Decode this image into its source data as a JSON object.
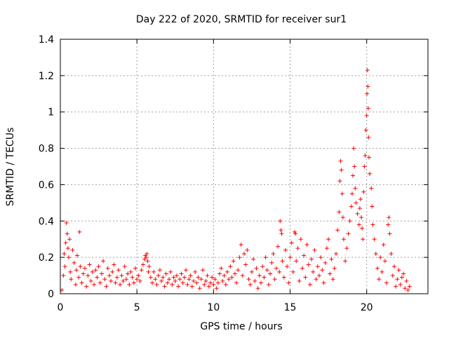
{
  "chart_data": {
    "type": "scatter",
    "title": "Day 222 of 2020, SRMTID for receiver sur1",
    "xlabel": "GPS time / hours",
    "ylabel": "SRMTID / TECUs",
    "xlim": [
      0,
      24
    ],
    "ylim": [
      0,
      1.4
    ],
    "xticks": [
      0,
      5,
      10,
      15,
      20
    ],
    "xtick_labels": [
      "0",
      "5",
      "10",
      "15",
      "20"
    ],
    "yticks": [
      0,
      0.2,
      0.4,
      0.6,
      0.8,
      1,
      1.2,
      1.4
    ],
    "ytick_labels": [
      "0",
      "0.2",
      "0.4",
      "0.6",
      "0.8",
      "1",
      "1.2",
      "1.4"
    ],
    "grid": true,
    "marker": "+",
    "colors": {
      "series": "#ff0000",
      "grid": "#a0a0a0",
      "axis": "#000000"
    },
    "series": [
      {
        "name": "SRMTID",
        "points": [
          [
            0.1,
            0.02
          ],
          [
            0.2,
            0.1
          ],
          [
            0.25,
            0.22
          ],
          [
            0.3,
            0.15
          ],
          [
            0.35,
            0.28
          ],
          [
            0.4,
            0.39
          ],
          [
            0.45,
            0.33
          ],
          [
            0.5,
            0.25
          ],
          [
            0.55,
            0.2
          ],
          [
            0.6,
            0.3
          ],
          [
            0.65,
            0.12
          ],
          [
            0.7,
            0.08
          ],
          [
            0.8,
            0.24
          ],
          [
            0.9,
            0.17
          ],
          [
            1.0,
            0.05
          ],
          [
            1.05,
            0.13
          ],
          [
            1.1,
            0.21
          ],
          [
            1.2,
            0.09
          ],
          [
            1.25,
            0.34
          ],
          [
            1.3,
            0.15
          ],
          [
            1.4,
            0.06
          ],
          [
            1.5,
            0.11
          ],
          [
            1.6,
            0.14
          ],
          [
            1.7,
            0.04
          ],
          [
            1.8,
            0.1
          ],
          [
            1.9,
            0.16
          ],
          [
            2.0,
            0.07
          ],
          [
            2.1,
            0.12
          ],
          [
            2.2,
            0.05
          ],
          [
            2.3,
            0.13
          ],
          [
            2.4,
            0.09
          ],
          [
            2.5,
            0.15
          ],
          [
            2.6,
            0.06
          ],
          [
            2.7,
            0.11
          ],
          [
            2.8,
            0.18
          ],
          [
            2.9,
            0.08
          ],
          [
            3.0,
            0.04
          ],
          [
            3.1,
            0.14
          ],
          [
            3.2,
            0.1
          ],
          [
            3.3,
            0.07
          ],
          [
            3.4,
            0.12
          ],
          [
            3.5,
            0.16
          ],
          [
            3.6,
            0.06
          ],
          [
            3.7,
            0.09
          ],
          [
            3.8,
            0.13
          ],
          [
            3.9,
            0.05
          ],
          [
            4.0,
            0.1
          ],
          [
            4.1,
            0.07
          ],
          [
            4.2,
            0.15
          ],
          [
            4.3,
            0.08
          ],
          [
            4.4,
            0.11
          ],
          [
            4.5,
            0.05
          ],
          [
            4.6,
            0.12
          ],
          [
            4.7,
            0.09
          ],
          [
            4.8,
            0.06
          ],
          [
            4.9,
            0.14
          ],
          [
            5.0,
            0.08
          ],
          [
            5.1,
            0.1
          ],
          [
            5.2,
            0.07
          ],
          [
            5.3,
            0.13
          ],
          [
            5.4,
            0.16
          ],
          [
            5.5,
            0.19
          ],
          [
            5.55,
            0.21
          ],
          [
            5.6,
            0.2
          ],
          [
            5.65,
            0.22
          ],
          [
            5.7,
            0.18
          ],
          [
            5.75,
            0.12
          ],
          [
            5.8,
            0.15
          ],
          [
            5.9,
            0.09
          ],
          [
            6.0,
            0.06
          ],
          [
            6.1,
            0.12
          ],
          [
            6.2,
            0.08
          ],
          [
            6.3,
            0.05
          ],
          [
            6.4,
            0.1
          ],
          [
            6.5,
            0.13
          ],
          [
            6.6,
            0.07
          ],
          [
            6.7,
            0.09
          ],
          [
            6.8,
            0.04
          ],
          [
            6.9,
            0.11
          ],
          [
            7.0,
            0.06
          ],
          [
            7.1,
            0.08
          ],
          [
            7.2,
            0.12
          ],
          [
            7.3,
            0.05
          ],
          [
            7.4,
            0.09
          ],
          [
            7.5,
            0.07
          ],
          [
            7.6,
            0.1
          ],
          [
            7.7,
            0.04
          ],
          [
            7.8,
            0.08
          ],
          [
            7.9,
            0.11
          ],
          [
            8.0,
            0.06
          ],
          [
            8.1,
            0.09
          ],
          [
            8.2,
            0.13
          ],
          [
            8.3,
            0.05
          ],
          [
            8.4,
            0.08
          ],
          [
            8.5,
            0.1
          ],
          [
            8.6,
            0.04
          ],
          [
            8.7,
            0.07
          ],
          [
            8.8,
            0.12
          ],
          [
            8.9,
            0.06
          ],
          [
            9.0,
            0.09
          ],
          [
            9.1,
            0.03
          ],
          [
            9.2,
            0.08
          ],
          [
            9.3,
            0.13
          ],
          [
            9.4,
            0.05
          ],
          [
            9.5,
            0.07
          ],
          [
            9.6,
            0.1
          ],
          [
            9.7,
            0.04
          ],
          [
            9.8,
            0.06
          ],
          [
            9.9,
            0.09
          ],
          [
            10.0,
            0.05
          ],
          [
            10.1,
            0.08
          ],
          [
            10.2,
            0.03
          ],
          [
            10.3,
            0.06
          ],
          [
            10.4,
            0.11
          ],
          [
            10.5,
            0.14
          ],
          [
            10.6,
            0.07
          ],
          [
            10.7,
            0.1
          ],
          [
            10.8,
            0.05
          ],
          [
            10.9,
            0.12
          ],
          [
            11.0,
            0.08
          ],
          [
            11.1,
            0.15
          ],
          [
            11.2,
            0.09
          ],
          [
            11.3,
            0.18
          ],
          [
            11.4,
            0.11
          ],
          [
            11.5,
            0.06
          ],
          [
            11.6,
            0.13
          ],
          [
            11.7,
            0.2
          ],
          [
            11.8,
            0.27
          ],
          [
            11.9,
            0.1
          ],
          [
            12.0,
            0.22
          ],
          [
            12.1,
            0.16
          ],
          [
            12.2,
            0.24
          ],
          [
            12.3,
            0.08
          ],
          [
            12.4,
            0.05
          ],
          [
            12.5,
            0.12
          ],
          [
            12.6,
            0.19
          ],
          [
            12.7,
            0.07
          ],
          [
            12.8,
            0.14
          ],
          [
            12.9,
            0.03
          ],
          [
            13.0,
            0.1
          ],
          [
            13.1,
            0.06
          ],
          [
            13.2,
            0.15
          ],
          [
            13.3,
            0.09
          ],
          [
            13.4,
            0.2
          ],
          [
            13.5,
            0.13
          ],
          [
            13.6,
            0.05
          ],
          [
            13.7,
            0.11
          ],
          [
            13.8,
            0.17
          ],
          [
            13.9,
            0.22
          ],
          [
            14.0,
            0.08
          ],
          [
            14.1,
            0.14
          ],
          [
            14.2,
            0.26
          ],
          [
            14.3,
            0.12
          ],
          [
            14.35,
            0.4
          ],
          [
            14.4,
            0.35
          ],
          [
            14.45,
            0.33
          ],
          [
            14.5,
            0.18
          ],
          [
            14.6,
            0.09
          ],
          [
            14.7,
            0.24
          ],
          [
            14.8,
            0.15
          ],
          [
            14.9,
            0.06
          ],
          [
            15.0,
            0.2
          ],
          [
            15.1,
            0.28
          ],
          [
            15.2,
            0.12
          ],
          [
            15.3,
            0.34
          ],
          [
            15.35,
            0.33
          ],
          [
            15.4,
            0.18
          ],
          [
            15.5,
            0.25
          ],
          [
            15.6,
            0.07
          ],
          [
            15.7,
            0.3
          ],
          [
            15.8,
            0.14
          ],
          [
            15.9,
            0.21
          ],
          [
            16.0,
            0.09
          ],
          [
            16.1,
            0.27
          ],
          [
            16.2,
            0.16
          ],
          [
            16.3,
            0.05
          ],
          [
            16.4,
            0.19
          ],
          [
            16.5,
            0.12
          ],
          [
            16.6,
            0.24
          ],
          [
            16.7,
            0.08
          ],
          [
            16.8,
            0.15
          ],
          [
            16.9,
            0.1
          ],
          [
            17.0,
            0.2
          ],
          [
            17.1,
            0.13
          ],
          [
            17.2,
            0.06
          ],
          [
            17.3,
            0.17
          ],
          [
            17.4,
            0.25
          ],
          [
            17.5,
            0.3
          ],
          [
            17.6,
            0.11
          ],
          [
            17.7,
            0.19
          ],
          [
            17.8,
            0.08
          ],
          [
            17.9,
            0.14
          ],
          [
            18.0,
            0.22
          ],
          [
            18.1,
            0.35
          ],
          [
            18.2,
            0.45
          ],
          [
            18.25,
            0.62
          ],
          [
            18.3,
            0.73
          ],
          [
            18.35,
            0.68
          ],
          [
            18.4,
            0.55
          ],
          [
            18.45,
            0.42
          ],
          [
            18.5,
            0.3
          ],
          [
            18.6,
            0.18
          ],
          [
            18.7,
            0.25
          ],
          [
            18.8,
            0.33
          ],
          [
            18.9,
            0.4
          ],
          [
            19.0,
            0.48
          ],
          [
            19.05,
            0.55
          ],
          [
            19.1,
            0.65
          ],
          [
            19.15,
            0.8
          ],
          [
            19.2,
            0.7
          ],
          [
            19.25,
            0.58
          ],
          [
            19.3,
            0.5
          ],
          [
            19.4,
            0.44
          ],
          [
            19.5,
            0.38
          ],
          [
            19.55,
            0.47
          ],
          [
            19.6,
            0.52
          ],
          [
            19.65,
            0.42
          ],
          [
            19.7,
            0.36
          ],
          [
            19.75,
            0.3
          ],
          [
            19.8,
            0.56
          ],
          [
            19.85,
            0.7
          ],
          [
            19.9,
            0.76
          ],
          [
            19.95,
            0.9
          ],
          [
            20.0,
            0.98
          ],
          [
            20.02,
            1.1
          ],
          [
            20.05,
            1.23
          ],
          [
            20.08,
            1.14
          ],
          [
            20.1,
            1.02
          ],
          [
            20.12,
            0.86
          ],
          [
            20.15,
            0.75
          ],
          [
            20.2,
            0.66
          ],
          [
            20.3,
            0.58
          ],
          [
            20.35,
            0.48
          ],
          [
            20.4,
            0.38
          ],
          [
            20.5,
            0.3
          ],
          [
            20.6,
            0.22
          ],
          [
            20.7,
            0.14
          ],
          [
            20.8,
            0.08
          ],
          [
            20.9,
            0.2
          ],
          [
            21.0,
            0.12
          ],
          [
            21.1,
            0.27
          ],
          [
            21.2,
            0.18
          ],
          [
            21.3,
            0.06
          ],
          [
            21.4,
            0.38
          ],
          [
            21.45,
            0.42
          ],
          [
            21.5,
            0.33
          ],
          [
            21.6,
            0.22
          ],
          [
            21.7,
            0.1
          ],
          [
            21.8,
            0.15
          ],
          [
            21.9,
            0.04
          ],
          [
            22.0,
            0.08
          ],
          [
            22.1,
            0.13
          ],
          [
            22.2,
            0.05
          ],
          [
            22.3,
            0.09
          ],
          [
            22.4,
            0.11
          ],
          [
            22.5,
            0.03
          ],
          [
            22.6,
            0.07
          ],
          [
            22.7,
            0.02
          ],
          [
            22.8,
            0.04
          ]
        ]
      }
    ]
  }
}
